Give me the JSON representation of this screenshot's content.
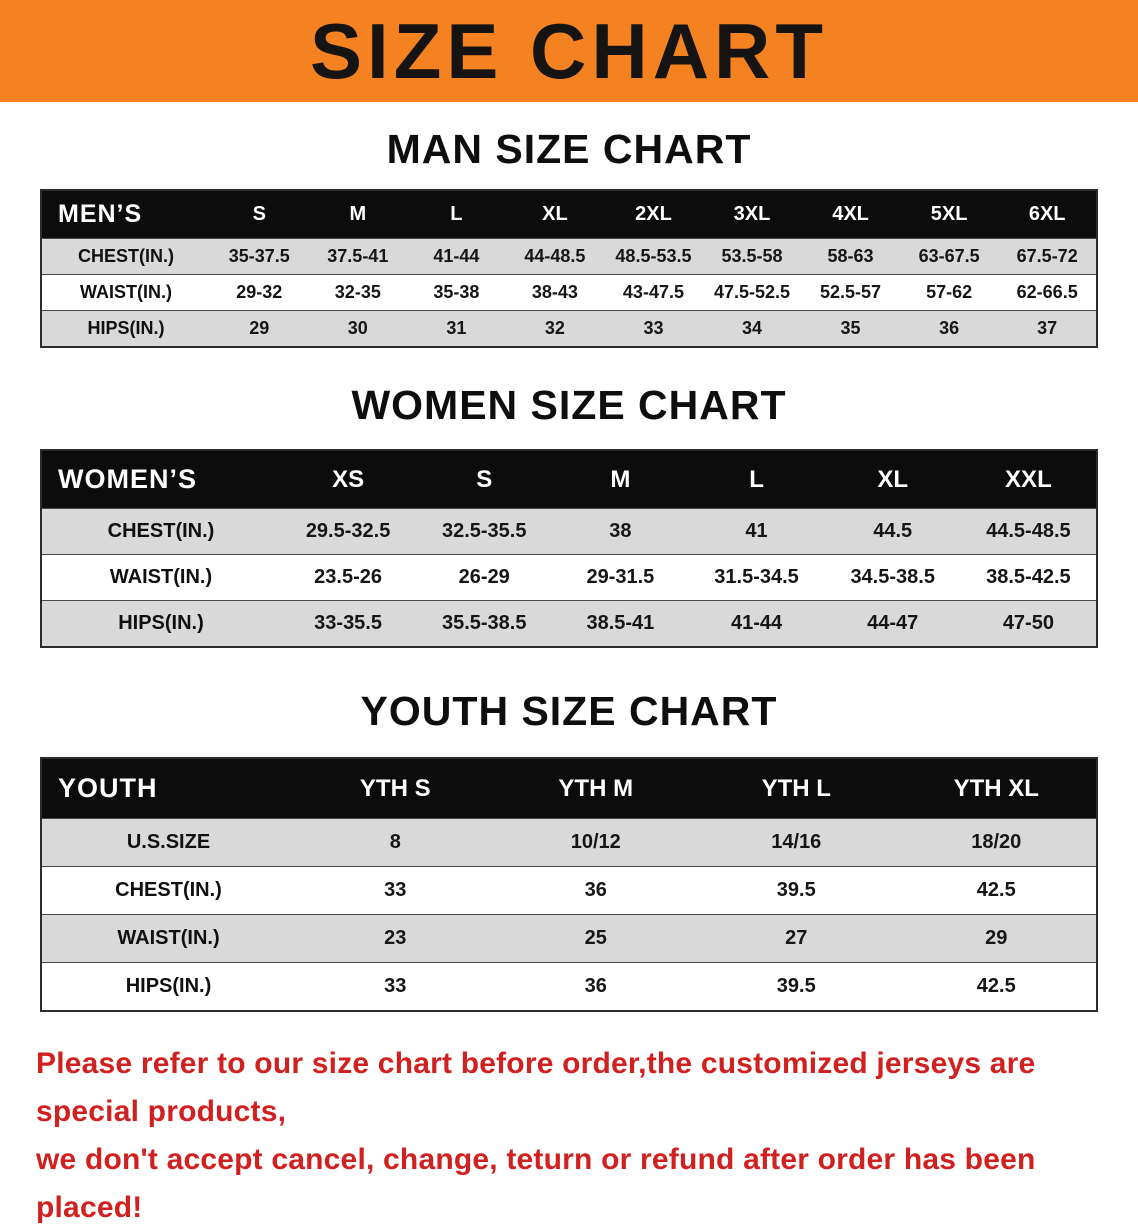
{
  "banner": {
    "title": "SIZE CHART"
  },
  "colors": {
    "banner_orange": "#f58220",
    "disclaimer_red": "#d02020",
    "header_black": "#0c0c0c",
    "row_gray": "#d9d9d9"
  },
  "sections": [
    {
      "heading": "MAN SIZE CHART",
      "table": {
        "header": [
          "MEN’S",
          "S",
          "M",
          "L",
          "XL",
          "2XL",
          "3XL",
          "4XL",
          "5XL",
          "6XL"
        ],
        "rows": [
          [
            "CHEST(IN.)",
            "35-37.5",
            "37.5-41",
            "41-44",
            "44-48.5",
            "48.5-53.5",
            "53.5-58",
            "58-63",
            "63-67.5",
            "67.5-72"
          ],
          [
            "WAIST(IN.)",
            "29-32",
            "32-35",
            "35-38",
            "38-43",
            "43-47.5",
            "47.5-52.5",
            "52.5-57",
            "57-62",
            "62-66.5"
          ],
          [
            "HIPS(IN.)",
            "29",
            "30",
            "31",
            "32",
            "33",
            "34",
            "35",
            "36",
            "37"
          ]
        ]
      }
    },
    {
      "heading": "WOMEN SIZE CHART",
      "table": {
        "header": [
          "WOMEN’S",
          "XS",
          "S",
          "M",
          "L",
          "XL",
          "XXL"
        ],
        "rows": [
          [
            "CHEST(IN.)",
            "29.5-32.5",
            "32.5-35.5",
            "38",
            "41",
            "44.5",
            "44.5-48.5"
          ],
          [
            "WAIST(IN.)",
            "23.5-26",
            "26-29",
            "29-31.5",
            "31.5-34.5",
            "34.5-38.5",
            "38.5-42.5"
          ],
          [
            "HIPS(IN.)",
            "33-35.5",
            "35.5-38.5",
            "38.5-41",
            "41-44",
            "44-47",
            "47-50"
          ]
        ]
      }
    },
    {
      "heading": "YOUTH SIZE CHART",
      "table": {
        "header": [
          "YOUTH",
          "YTH S",
          "YTH M",
          "YTH L",
          "YTH XL"
        ],
        "rows": [
          [
            "U.S.SIZE",
            "8",
            "10/12",
            "14/16",
            "18/20"
          ],
          [
            "CHEST(IN.)",
            "33",
            "36",
            "39.5",
            "42.5"
          ],
          [
            "WAIST(IN.)",
            "23",
            "25",
            "27",
            "29"
          ],
          [
            "HIPS(IN.)",
            "33",
            "36",
            "39.5",
            "42.5"
          ]
        ]
      }
    }
  ],
  "footer": {
    "line1": "Please refer to our size chart before order,the customized jerseys are special products,",
    "line2": "we don't accept cancel, change, teturn or refund after order has been placed!"
  }
}
